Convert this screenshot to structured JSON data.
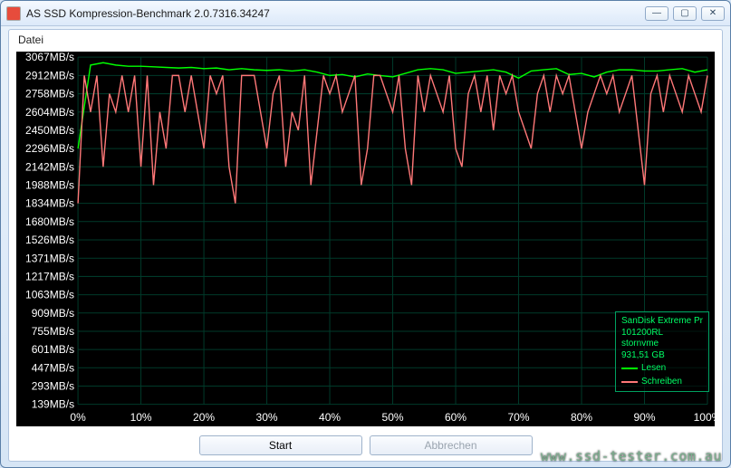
{
  "window": {
    "title": "AS SSD Kompression-Benchmark 2.0.7316.34247",
    "controls": {
      "minimize": "—",
      "maximize": "▢",
      "close": "✕"
    }
  },
  "menu": {
    "datei": "Datei"
  },
  "chart": {
    "background_color": "#000000",
    "grid_color": "#003a2a",
    "text_color": "#ffffff",
    "y_unit": "MB/s",
    "y_min": 139,
    "y_max": 3067,
    "y_ticks": [
      3067,
      2912,
      2758,
      2604,
      2450,
      2296,
      2142,
      1988,
      1834,
      1680,
      1526,
      1371,
      1217,
      1063,
      909,
      755,
      601,
      447,
      293,
      139
    ],
    "x_ticks": [
      "0%",
      "10%",
      "20%",
      "30%",
      "40%",
      "50%",
      "60%",
      "70%",
      "80%",
      "90%",
      "100%"
    ],
    "series": {
      "lesen": {
        "label": "Lesen",
        "color": "#00ff00",
        "x_pct": [
          0,
          2,
          4,
          6,
          8,
          10,
          12,
          14,
          16,
          18,
          20,
          22,
          24,
          26,
          28,
          30,
          32,
          34,
          36,
          38,
          40,
          42,
          44,
          46,
          48,
          50,
          52,
          54,
          56,
          58,
          60,
          62,
          64,
          66,
          68,
          70,
          72,
          74,
          76,
          78,
          80,
          82,
          84,
          86,
          88,
          90,
          92,
          94,
          96,
          98,
          100
        ],
        "y_val": [
          2296,
          3000,
          3020,
          3000,
          2990,
          2990,
          2985,
          2980,
          2975,
          2980,
          2970,
          2975,
          2960,
          2970,
          2960,
          2955,
          2960,
          2950,
          2960,
          2940,
          2912,
          2920,
          2900,
          2925,
          2912,
          2900,
          2930,
          2960,
          2970,
          2960,
          2930,
          2940,
          2950,
          2960,
          2940,
          2890,
          2950,
          2960,
          2970,
          2920,
          2930,
          2900,
          2940,
          2960,
          2960,
          2950,
          2950,
          2960,
          2970,
          2940,
          2960
        ]
      },
      "schreiben": {
        "label": "Schreiben",
        "color": "#ff7878",
        "x_pct": [
          0,
          1,
          2,
          3,
          4,
          5,
          6,
          7,
          8,
          9,
          10,
          11,
          12,
          13,
          14,
          15,
          16,
          17,
          18,
          19,
          20,
          21,
          22,
          23,
          24,
          25,
          26,
          27,
          28,
          29,
          30,
          31,
          32,
          33,
          34,
          35,
          36,
          37,
          38,
          39,
          40,
          41,
          42,
          43,
          44,
          45,
          46,
          47,
          48,
          49,
          50,
          51,
          52,
          53,
          54,
          55,
          56,
          57,
          58,
          59,
          60,
          61,
          62,
          63,
          64,
          65,
          66,
          67,
          68,
          69,
          70,
          71,
          72,
          73,
          74,
          75,
          76,
          77,
          78,
          79,
          80,
          81,
          82,
          83,
          84,
          85,
          86,
          87,
          88,
          89,
          90,
          91,
          92,
          93,
          94,
          95,
          96,
          97,
          98,
          99,
          100
        ],
        "y_val": [
          1834,
          2912,
          2604,
          2912,
          2142,
          2758,
          2604,
          2912,
          2604,
          2912,
          2142,
          2912,
          1988,
          2604,
          2296,
          2912,
          2912,
          2604,
          2912,
          2604,
          2296,
          2912,
          2758,
          2912,
          2142,
          1834,
          2912,
          2912,
          2912,
          2604,
          2296,
          2758,
          2912,
          2142,
          2604,
          2450,
          2912,
          1988,
          2450,
          2912,
          2758,
          2912,
          2604,
          2758,
          2912,
          1988,
          2296,
          2912,
          2912,
          2758,
          2604,
          2912,
          2296,
          1988,
          2912,
          2604,
          2912,
          2758,
          2604,
          2912,
          2296,
          2142,
          2758,
          2912,
          2604,
          2912,
          2450,
          2912,
          2758,
          2912,
          2604,
          2450,
          2296,
          2758,
          2912,
          2604,
          2912,
          2758,
          2912,
          2604,
          2296,
          2604,
          2758,
          2912,
          2758,
          2912,
          2604,
          2758,
          2912,
          2450,
          1988,
          2758,
          2912,
          2604,
          2912,
          2758,
          2604,
          2912,
          2758,
          2604,
          2912
        ]
      }
    },
    "legend": {
      "device": "SanDisk Extreme Pr",
      "firmware": "101200RL",
      "driver": "stornvme",
      "capacity": "931,51 GB"
    }
  },
  "buttons": {
    "start": "Start",
    "abort": "Abbrechen"
  },
  "watermark": "www.ssd-tester.com.au"
}
